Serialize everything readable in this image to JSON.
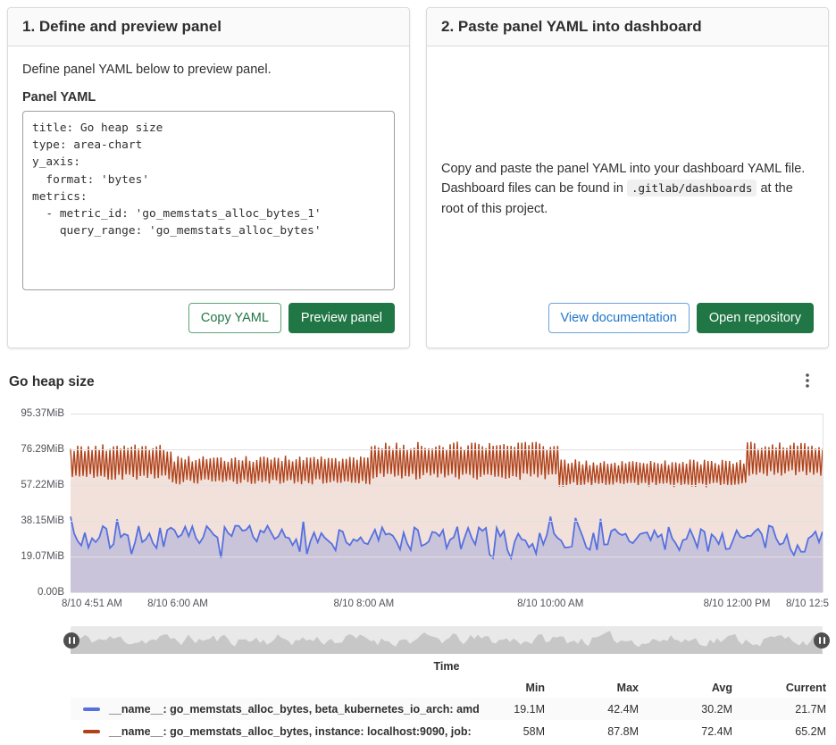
{
  "cards": {
    "define": {
      "title": "1. Define and preview panel",
      "description": "Define panel YAML below to preview panel.",
      "yaml_label": "Panel YAML",
      "yaml": "title: Go heap size\ntype: area-chart\ny_axis:\n  format: 'bytes'\nmetrics:\n  - metric_id: 'go_memstats_alloc_bytes_1'\n    query_range: 'go_memstats_alloc_bytes'",
      "copy_button": "Copy YAML",
      "preview_button": "Preview panel"
    },
    "paste": {
      "title": "2. Paste panel YAML into dashboard",
      "description_before": "Copy and paste the panel YAML into your dashboard YAML file. Dashboard files can be found in ",
      "description_code": ".gitlab/dashboards",
      "description_after": " at the root of this project.",
      "docs_button": "View documentation",
      "repo_button": "Open repository"
    }
  },
  "chart": {
    "title": "Go heap size",
    "menu_icon": "kebab-menu"
  },
  "chart_data": {
    "type": "area",
    "title": "Go heap size",
    "x_axis_label": "Time",
    "y_axis_format": "bytes",
    "ylim_mib": [
      0,
      95.37
    ],
    "y_ticks": [
      "95.37MiB",
      "76.29MiB",
      "57.22MiB",
      "38.15MiB",
      "19.07MiB",
      "0.00B"
    ],
    "x_ticks": [
      {
        "label": "8/10 4:51 AM",
        "pos": 0,
        "align": "left"
      },
      {
        "label": "8/10 6:00 AM",
        "pos": 0.1425
      },
      {
        "label": "8/10 8:00 AM",
        "pos": 0.39
      },
      {
        "label": "8/10 10:00 AM",
        "pos": 0.638
      },
      {
        "label": "8/10 12:00 PM",
        "pos": 0.886
      },
      {
        "label": "8/10 12:5",
        "pos": 1,
        "align": "right"
      }
    ],
    "legend_columns": [
      "Min",
      "Max",
      "Avg",
      "Current"
    ],
    "series": [
      {
        "legend_label": "__name__: go_memstats_alloc_bytes, beta_kubernetes_io_arch: amd",
        "color": "#5570e0",
        "fill_opacity": 0.25,
        "stats": {
          "min": "19.1M",
          "max": "42.4M",
          "avg": "30.2M",
          "current": "21.7M"
        },
        "pattern": {
          "kind": "noisy",
          "mean": 28.6,
          "spread": 14,
          "clamp": [
            18.2,
            40.4
          ],
          "points": 210,
          "seed": 7
        }
      },
      {
        "legend_label": "__name__: go_memstats_alloc_bytes, instance: localhost:9090, job:",
        "color": "#b0421a",
        "fill_opacity": 0.16,
        "stats": {
          "min": "58M",
          "max": "87.8M",
          "avg": "72.4M",
          "current": "65.2M"
        },
        "pattern": {
          "kind": "sawtooth",
          "points": 420,
          "seed": 42,
          "segments": [
            {
              "from": 0,
              "to": 0.135,
              "low": 60,
              "high": 79
            },
            {
              "from": 0.135,
              "to": 0.4,
              "low": 57.5,
              "high": 73
            },
            {
              "from": 0.4,
              "to": 0.65,
              "low": 60,
              "high": 80.5
            },
            {
              "from": 0.65,
              "to": 0.9,
              "low": 56,
              "high": 71
            },
            {
              "from": 0.9,
              "to": 1.001,
              "low": 62,
              "high": 80.5
            }
          ]
        }
      }
    ]
  }
}
